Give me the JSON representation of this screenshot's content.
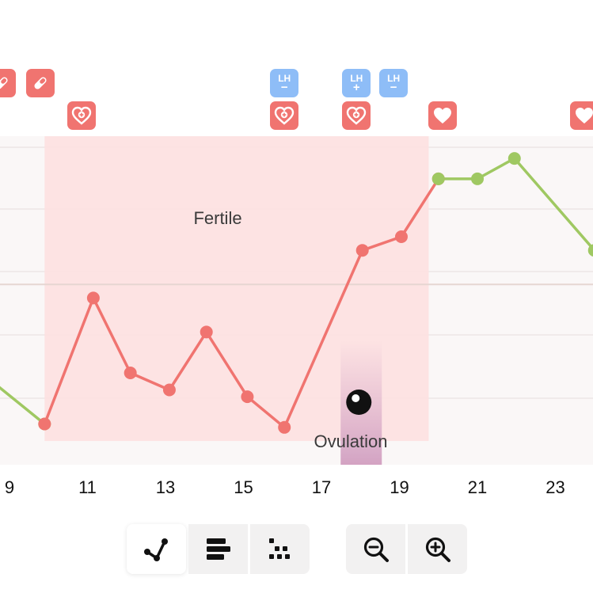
{
  "chart_data": {
    "type": "line",
    "x_ticks": [
      "9",
      "11",
      "13",
      "15",
      "17",
      "19",
      "21",
      "23"
    ],
    "xlim": [
      8.5,
      24
    ],
    "ylim": [
      0,
      1
    ],
    "annotations": {
      "fertile_label": "Fertile",
      "ovulation_label": "Ovulation"
    },
    "fertile_window": [
      9.9,
      19.75
    ],
    "ovulation_day": 18,
    "series": [
      {
        "color": "#9fc862",
        "points": [
          [
            8.5,
            0.28
          ],
          [
            9.9,
            0.15
          ]
        ]
      },
      {
        "color": "#f07470",
        "points": [
          [
            9.9,
            0.15
          ],
          [
            11.15,
            0.52
          ],
          [
            12.1,
            0.3
          ],
          [
            13.1,
            0.25
          ],
          [
            14.05,
            0.42
          ],
          [
            15.1,
            0.23
          ],
          [
            16.05,
            0.14
          ],
          [
            18.05,
            0.66
          ],
          [
            19.05,
            0.7
          ],
          [
            20.0,
            0.87
          ]
        ]
      },
      {
        "color": "#9fc862",
        "points": [
          [
            20.0,
            0.87
          ],
          [
            21.0,
            0.87
          ],
          [
            21.95,
            0.93
          ],
          [
            24.0,
            0.66
          ]
        ]
      }
    ],
    "grid": true,
    "cover_line_value": 0.56
  },
  "markers": [
    {
      "type": "pill",
      "icon": "pill-icon",
      "day": 8.8,
      "row": 1
    },
    {
      "type": "pill",
      "icon": "pill-icon",
      "day": 9.8,
      "row": 1
    },
    {
      "type": "heart-outline",
      "icon": "heart-cross-icon",
      "day": 10.85,
      "row": 2
    },
    {
      "type": "lh",
      "text": "LH",
      "sign": "−",
      "icon": "lh-test-icon",
      "day": 16.05,
      "row": 1
    },
    {
      "type": "heart-outline",
      "icon": "heart-cross-icon",
      "day": 16.05,
      "row": 2
    },
    {
      "type": "lh",
      "text": "LH",
      "sign": "+",
      "icon": "lh-test-icon",
      "day": 17.9,
      "row": 1
    },
    {
      "type": "heart-outline",
      "icon": "heart-cross-icon",
      "day": 17.9,
      "row": 2
    },
    {
      "type": "lh",
      "text": "LH",
      "sign": "−",
      "icon": "lh-test-icon",
      "day": 18.85,
      "row": 1
    },
    {
      "type": "heart",
      "icon": "heart-icon",
      "day": 20.1,
      "row": 2
    },
    {
      "type": "heart",
      "icon": "heart-icon",
      "day": 23.75,
      "row": 2
    }
  ],
  "toolbar": {
    "view_buttons": [
      {
        "name": "line-view",
        "icon": "line-chart-icon",
        "active": true
      },
      {
        "name": "bar-view",
        "icon": "bars-icon",
        "active": false
      },
      {
        "name": "dot-view",
        "icon": "dots-grid-icon",
        "active": false
      }
    ],
    "zoom_buttons": [
      {
        "name": "zoom-out",
        "icon": "zoom-out-icon"
      },
      {
        "name": "zoom-in",
        "icon": "zoom-in-icon"
      }
    ]
  }
}
